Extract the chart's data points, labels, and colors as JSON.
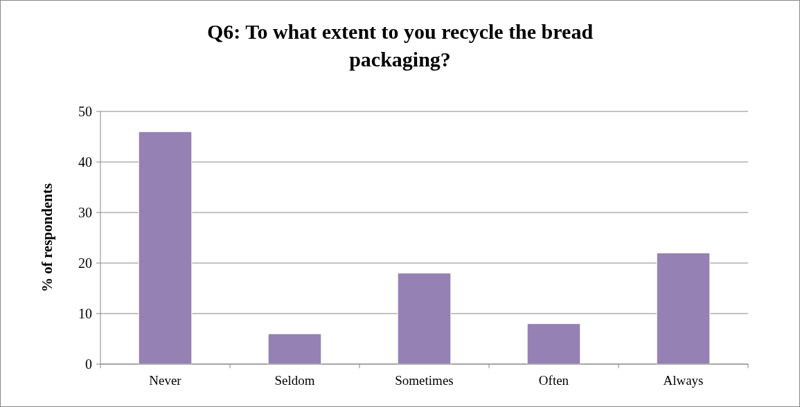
{
  "chart_data": {
    "type": "bar",
    "title": "Q6: To what extent to you recycle the bread packaging?",
    "ylabel": "% of respondents",
    "categories": [
      "Never",
      "Seldom",
      "Sometimes",
      "Often",
      "Always"
    ],
    "values": [
      46,
      6,
      18,
      8,
      22
    ],
    "color": "#9581b3",
    "ylim": [
      0,
      50
    ],
    "yticks": [
      0,
      10,
      20,
      30,
      40,
      50
    ],
    "grid": "y"
  }
}
